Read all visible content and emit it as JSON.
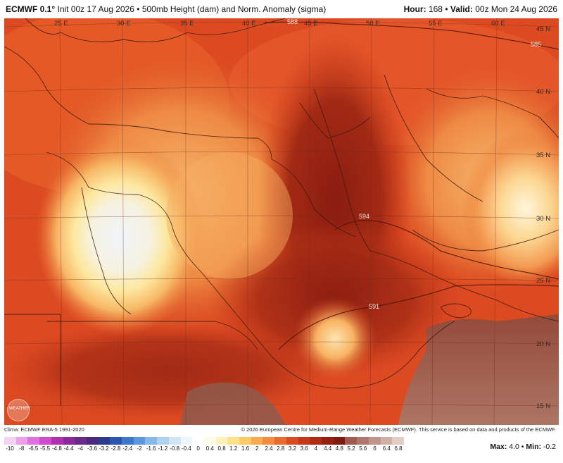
{
  "header": {
    "model": "ECMWF 0.1°",
    "init": "Init 00z 17 Aug 2026",
    "bullet": "•",
    "field": "500mb Height (dam) and Norm. Anomaly (sigma)",
    "hour_label": "Hour:",
    "hour": "168",
    "valid_label": "Valid:",
    "valid": "00z Mon 24 Aug 2026"
  },
  "map": {
    "lon_labels": [
      "25 E",
      "30 E",
      "35 E",
      "40 E",
      "45 E",
      "50 E",
      "55 E",
      "60 E"
    ],
    "lat_labels": [
      "45 N",
      "40 N",
      "35 N",
      "30 N",
      "25 N",
      "20 N",
      "15 N"
    ],
    "contour_labels": [
      "588",
      "594",
      "591",
      "585"
    ],
    "logo_text": "WEATHER"
  },
  "credits": {
    "left": "Clima: ECMWF ERA-5 1991-2020",
    "right": "© 2026 European Centre for Medium-Range Weather Forecasts (ECMWF). This service is based on data and products of the ECMWF."
  },
  "colorbar": {
    "ticks": [
      "-10",
      "-8",
      "-6.5",
      "-5.5",
      "-4.8",
      "-4.4",
      "-4",
      "-3.6",
      "-3.2",
      "-2.8",
      "-2.4",
      "-2",
      "-1.6",
      "-1.2",
      "-0.8",
      "-0.4",
      "0",
      "0.4",
      "0.8",
      "1.2",
      "1.6",
      "2",
      "2.4",
      "2.8",
      "3.2",
      "3.6",
      "4",
      "4.4",
      "4.8",
      "5.2",
      "5.6",
      "6",
      "6.4",
      "6.8"
    ],
    "colors": [
      "#f4d2f4",
      "#ec9eeb",
      "#e070df",
      "#d04ad0",
      "#b030b0",
      "#8a2a9a",
      "#6a2a8a",
      "#4a2a7a",
      "#2c3a8c",
      "#2a56b0",
      "#3c78cc",
      "#5e98dc",
      "#86b8e8",
      "#aed2f0",
      "#d0e6f6",
      "#eef6fc",
      "#ffffff",
      "#fffbe6",
      "#fff1b8",
      "#ffe18a",
      "#ffc966",
      "#fbaa52",
      "#f58a40",
      "#ec6a30",
      "#dd4a22",
      "#c83618",
      "#b02a14",
      "#962010",
      "#7e1a0e",
      "#a05a50",
      "#b0786c",
      "#c09488",
      "#d0b0a6",
      "#e2ccc4"
    ]
  },
  "stats": {
    "max_label": "Max:",
    "max": "4.0",
    "sep": "•",
    "min_label": "Min:",
    "min": "-0.2"
  }
}
